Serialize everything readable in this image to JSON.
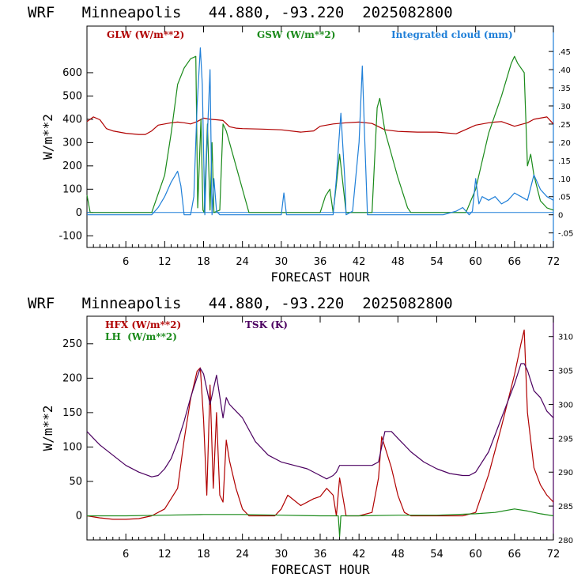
{
  "chart_data": [
    {
      "type": "line",
      "title": "WRF   Minneapolis   44.880, -93.220  2025082800",
      "xlabel": "FORECAST HOUR",
      "ylabel": "W/m**2",
      "xlim": [
        0,
        72
      ],
      "ylim": [
        -150,
        800
      ],
      "y2lim": [
        -0.09,
        0.52
      ],
      "xticks": [
        "6",
        "12",
        "18",
        "24",
        "30",
        "36",
        "42",
        "48",
        "54",
        "60",
        "66",
        "72"
      ],
      "yticks": [
        "-100",
        "0",
        "100",
        "200",
        "300",
        "400",
        "500",
        "600"
      ],
      "y2ticks": [
        "-.05",
        "0",
        ".05",
        ".10",
        ".15",
        ".20",
        ".25",
        ".30",
        ".35",
        ".40",
        ".45"
      ],
      "series": [
        {
          "name": "GLW (W/m**2)",
          "color": "#b00000",
          "axis": "left",
          "x": [
            0,
            1,
            2,
            3,
            4,
            6,
            8,
            9,
            10,
            11,
            12,
            13,
            14,
            15,
            16,
            17,
            18,
            19,
            20,
            21,
            22,
            23,
            24,
            27,
            30,
            33,
            35,
            36,
            38,
            40,
            42,
            44,
            46,
            48,
            51,
            54,
            57,
            58,
            60,
            62,
            63,
            64,
            66,
            68,
            69,
            70,
            71,
            72
          ],
          "y": [
            390,
            410,
            398,
            360,
            350,
            340,
            335,
            335,
            350,
            375,
            380,
            385,
            388,
            385,
            380,
            390,
            405,
            400,
            398,
            395,
            368,
            362,
            360,
            358,
            355,
            345,
            350,
            370,
            380,
            385,
            388,
            382,
            355,
            348,
            345,
            345,
            338,
            350,
            375,
            385,
            388,
            390,
            370,
            385,
            400,
            405,
            410,
            380
          ]
        },
        {
          "name": "GSW (W/m**2)",
          "color": "#1a8a1a",
          "axis": "left",
          "x": [
            0,
            0.5,
            10,
            12,
            13,
            14,
            15,
            16,
            16.8,
            17.1,
            17.6,
            17.9,
            18.1,
            18.6,
            19,
            19.3,
            19.6,
            20.5,
            21,
            21.5,
            23,
            24.5,
            25,
            36,
            36.8,
            37.5,
            38,
            38.5,
            39,
            40,
            41,
            43,
            44,
            44.8,
            45.2,
            46,
            48,
            49.5,
            50,
            58.5,
            60,
            62,
            64,
            65.5,
            66,
            66.5,
            67.5,
            68,
            68.5,
            69,
            70,
            71,
            72
          ],
          "y": [
            75,
            0,
            0,
            160,
            340,
            550,
            620,
            660,
            670,
            20,
            400,
            10,
            0,
            380,
            10,
            300,
            0,
            10,
            380,
            350,
            200,
            50,
            0,
            0,
            70,
            100,
            0,
            120,
            250,
            0,
            0,
            0,
            0,
            450,
            490,
            350,
            150,
            20,
            0,
            0,
            100,
            340,
            500,
            640,
            670,
            640,
            600,
            200,
            250,
            160,
            50,
            20,
            10
          ]
        },
        {
          "name": "Integrated cloud (mm)",
          "color": "#1f7fd8",
          "axis": "right",
          "x": [
            0,
            10,
            11,
            12,
            13,
            14,
            14.5,
            15,
            16,
            16.5,
            17,
            17.5,
            17.8,
            18.2,
            18.5,
            19,
            19.3,
            19.6,
            20,
            20.5,
            21,
            30,
            30.4,
            30.8,
            38,
            38.5,
            38.8,
            39.2,
            39.8,
            40,
            41,
            42,
            42.5,
            42.9,
            43.3,
            44,
            55,
            57,
            58,
            59,
            59.5,
            60,
            60.5,
            61,
            62,
            63,
            64,
            65,
            66,
            67,
            68,
            69,
            70,
            71,
            72
          ],
          "y": [
            0,
            0,
            0.02,
            0.05,
            0.09,
            0.12,
            0.08,
            0.0,
            0.0,
            0.05,
            0.3,
            0.46,
            0.36,
            0.0,
            0.18,
            0.4,
            0.0,
            0.1,
            0.01,
            0.0,
            0.0,
            0.0,
            0.06,
            0.0,
            0.0,
            0.1,
            0.18,
            0.28,
            0.1,
            0.0,
            0.01,
            0.2,
            0.41,
            0.2,
            0.0,
            0.0,
            0.0,
            0.01,
            0.02,
            0.0,
            0.01,
            0.1,
            0.03,
            0.05,
            0.04,
            0.05,
            0.03,
            0.04,
            0.06,
            0.05,
            0.04,
            0.11,
            0.07,
            0.05,
            0.04
          ]
        }
      ]
    },
    {
      "type": "line",
      "title": "WRF   Minneapolis   44.880, -93.220  2025082800",
      "xlabel": "FORECAST HOUR",
      "ylabel": "W/m**2",
      "xlim": [
        0,
        72
      ],
      "ylim": [
        -35,
        290
      ],
      "y2lim": [
        280,
        313
      ],
      "xticks": [
        "6",
        "12",
        "18",
        "24",
        "30",
        "36",
        "42",
        "48",
        "54",
        "60",
        "66",
        "72"
      ],
      "yticks": [
        "0",
        "50",
        "100",
        "150",
        "200",
        "250"
      ],
      "y2ticks": [
        "280",
        "285",
        "290",
        "295",
        "300",
        "305",
        "310"
      ],
      "series": [
        {
          "name": "HFX (W/m**2)",
          "color": "#b00000",
          "axis": "left",
          "x": [
            0,
            2,
            4,
            6,
            8,
            10,
            12,
            14,
            15,
            16,
            17,
            17.5,
            18,
            18.5,
            19,
            19.5,
            20,
            20.5,
            21,
            21.5,
            22,
            23,
            24,
            25,
            27,
            29,
            30,
            31,
            33,
            35,
            36,
            37,
            38,
            38.5,
            39,
            40,
            42,
            44,
            45,
            45.5,
            46,
            47,
            48,
            49,
            50,
            52,
            55,
            58,
            60,
            62,
            64,
            66,
            67,
            67.5,
            68,
            68.5,
            69,
            70,
            71,
            72
          ],
          "y": [
            0,
            -3,
            -5,
            -5,
            -4,
            0,
            10,
            40,
            110,
            170,
            210,
            215,
            140,
            30,
            190,
            40,
            150,
            30,
            20,
            110,
            80,
            40,
            10,
            0,
            0,
            0,
            10,
            30,
            15,
            25,
            28,
            40,
            30,
            0,
            55,
            0,
            0,
            5,
            55,
            115,
            100,
            70,
            30,
            5,
            0,
            0,
            0,
            0,
            5,
            60,
            130,
            205,
            250,
            270,
            150,
            110,
            70,
            45,
            30,
            20
          ]
        },
        {
          "name": "LH  (W/m**2)",
          "color": "#1a8a1a",
          "axis": "left",
          "x": [
            0,
            6,
            12,
            18,
            24,
            30,
            36,
            38.8,
            39,
            39.2,
            42,
            48,
            54,
            60,
            63,
            66,
            68,
            70,
            72
          ],
          "y": [
            0,
            0,
            1,
            2,
            2,
            1,
            0,
            0,
            -30,
            0,
            0,
            1,
            1,
            3,
            5,
            10,
            7,
            3,
            0
          ]
        },
        {
          "name": "TSK (K)",
          "color": "#4b0060",
          "axis": "right",
          "x": [
            0,
            1,
            2,
            4,
            6,
            8,
            10,
            11,
            12,
            13,
            14,
            15,
            16,
            17,
            17.5,
            18,
            19,
            20,
            21,
            21.5,
            22,
            23,
            24,
            26,
            28,
            30,
            32,
            34,
            36,
            37,
            38,
            38.5,
            39,
            40,
            42,
            44,
            45,
            46,
            47,
            48,
            50,
            52,
            54,
            56,
            58,
            59,
            60,
            62,
            64,
            66,
            67,
            67.5,
            68,
            69,
            70,
            71,
            72
          ],
          "y": [
            296,
            295,
            294,
            292.5,
            291,
            290,
            289.3,
            289.5,
            290.5,
            292,
            294.5,
            297.5,
            301,
            304,
            305.3,
            304.5,
            300,
            304.3,
            298,
            301,
            300,
            299,
            298,
            294.5,
            292.5,
            291.5,
            291,
            290.5,
            289.5,
            289,
            289.5,
            290,
            291,
            291,
            291,
            291,
            291.5,
            296,
            296,
            295,
            293,
            291.5,
            290.5,
            289.8,
            289.5,
            289.5,
            290,
            293,
            298,
            303,
            306,
            306,
            305,
            302,
            301,
            299,
            298
          ]
        }
      ]
    }
  ]
}
